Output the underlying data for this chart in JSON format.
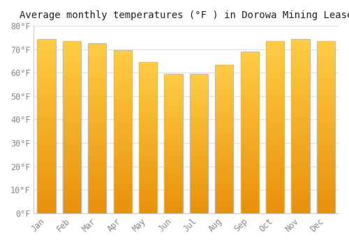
{
  "title": "Average monthly temperatures (°F ) in Dorowa Mining Lease",
  "months": [
    "Jan",
    "Feb",
    "Mar",
    "Apr",
    "May",
    "Jun",
    "Jul",
    "Aug",
    "Sep",
    "Oct",
    "Nov",
    "Dec"
  ],
  "values": [
    74.5,
    73.5,
    72.5,
    69.5,
    64.5,
    59.5,
    59.5,
    63.5,
    69.0,
    73.5,
    74.5,
    73.5
  ],
  "bar_color_bottom": "#E8900A",
  "bar_color_top": "#FFCC44",
  "bar_edge_color": "#BBBBBB",
  "background_color": "#FFFFFF",
  "outer_background": "#FFFFFF",
  "ylim": [
    0,
    80
  ],
  "yticks": [
    0,
    10,
    20,
    30,
    40,
    50,
    60,
    70,
    80
  ],
  "ytick_labels": [
    "0°F",
    "10°F",
    "20°F",
    "30°F",
    "40°F",
    "50°F",
    "60°F",
    "70°F",
    "80°F"
  ],
  "grid_color": "#DDDDDD",
  "title_fontsize": 10,
  "tick_fontsize": 8.5,
  "font_family": "monospace",
  "tick_color": "#888888"
}
